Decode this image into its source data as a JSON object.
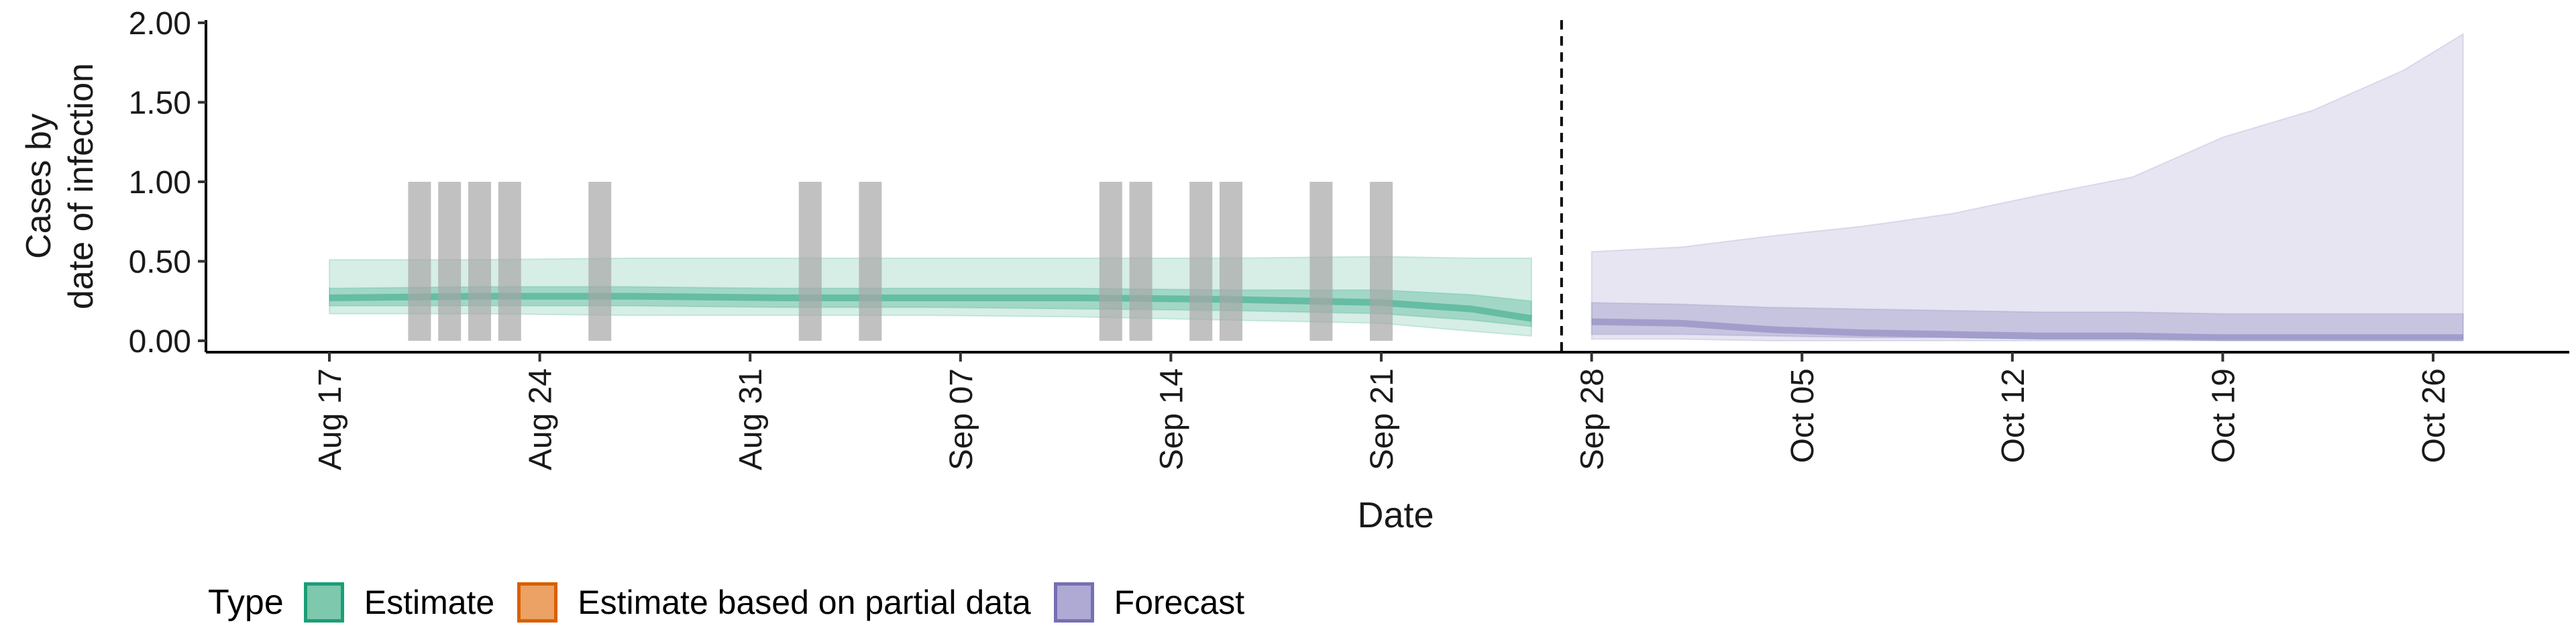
{
  "chart_data": {
    "type": "area",
    "ylabel_line1": "Cases by",
    "ylabel_line2": "date of infection",
    "xlabel": "Date",
    "ylim": [
      0,
      2
    ],
    "yticks": [
      {
        "value": 0,
        "label": "0.00"
      },
      {
        "value": 0.5,
        "label": "0.50"
      },
      {
        "value": 1.0,
        "label": "1.00"
      },
      {
        "value": 1.5,
        "label": "1.50"
      },
      {
        "value": 2.0,
        "label": "2.00"
      }
    ],
    "xrange": [
      "2021-08-17",
      "2021-10-26"
    ],
    "xticks": [
      {
        "date": "2021-08-17",
        "label": "Aug 17"
      },
      {
        "date": "2021-08-24",
        "label": "Aug 24"
      },
      {
        "date": "2021-08-31",
        "label": "Aug 31"
      },
      {
        "date": "2021-09-07",
        "label": "Sep 07"
      },
      {
        "date": "2021-09-14",
        "label": "Sep 14"
      },
      {
        "date": "2021-09-21",
        "label": "Sep 21"
      },
      {
        "date": "2021-09-28",
        "label": "Sep 28"
      },
      {
        "date": "2021-10-05",
        "label": "Oct 05"
      },
      {
        "date": "2021-10-12",
        "label": "Oct 12"
      },
      {
        "date": "2021-10-19",
        "label": "Oct 19"
      },
      {
        "date": "2021-10-26",
        "label": "Oct 26"
      }
    ],
    "forecast_cutoff": "2021-09-27",
    "observed_case_bars": [
      {
        "date": "2021-08-20",
        "value": 1
      },
      {
        "date": "2021-08-21",
        "value": 1
      },
      {
        "date": "2021-08-22",
        "value": 1
      },
      {
        "date": "2021-08-23",
        "value": 1
      },
      {
        "date": "2021-08-26",
        "value": 1
      },
      {
        "date": "2021-09-02",
        "value": 1
      },
      {
        "date": "2021-09-04",
        "value": 1
      },
      {
        "date": "2021-09-12",
        "value": 1
      },
      {
        "date": "2021-09-13",
        "value": 1
      },
      {
        "date": "2021-09-15",
        "value": 1
      },
      {
        "date": "2021-09-16",
        "value": 1
      },
      {
        "date": "2021-09-19",
        "value": 1
      },
      {
        "date": "2021-09-21",
        "value": 1
      }
    ],
    "series": [
      {
        "name": "Estimate",
        "color": "#1b9e77",
        "dates": [
          "2021-08-17",
          "2021-08-22",
          "2021-08-27",
          "2021-09-01",
          "2021-09-06",
          "2021-09-11",
          "2021-09-16",
          "2021-09-21",
          "2021-09-24",
          "2021-09-26"
        ],
        "lower90": [
          0.17,
          0.17,
          0.16,
          0.16,
          0.16,
          0.15,
          0.13,
          0.11,
          0.06,
          0.03
        ],
        "upper90": [
          0.51,
          0.51,
          0.52,
          0.52,
          0.52,
          0.52,
          0.52,
          0.53,
          0.52,
          0.52
        ],
        "lower50": [
          0.22,
          0.22,
          0.22,
          0.21,
          0.21,
          0.2,
          0.19,
          0.17,
          0.13,
          0.09
        ],
        "upper50": [
          0.33,
          0.34,
          0.34,
          0.33,
          0.33,
          0.33,
          0.32,
          0.32,
          0.29,
          0.25
        ],
        "median": [
          0.27,
          0.28,
          0.28,
          0.27,
          0.27,
          0.27,
          0.26,
          0.24,
          0.2,
          0.14
        ]
      },
      {
        "name": "Forecast",
        "color": "#7570b3",
        "dates": [
          "2021-09-28",
          "2021-10-01",
          "2021-10-04",
          "2021-10-07",
          "2021-10-10",
          "2021-10-13",
          "2021-10-16",
          "2021-10-19",
          "2021-10-22",
          "2021-10-25",
          "2021-10-27"
        ],
        "lower90": [
          0.01,
          0.01,
          0.0,
          0.0,
          0.0,
          0.0,
          0.0,
          0.0,
          0.0,
          0.0,
          0.0
        ],
        "upper90": [
          0.56,
          0.59,
          0.66,
          0.72,
          0.8,
          0.92,
          1.03,
          1.28,
          1.45,
          1.7,
          1.93
        ],
        "lower50": [
          0.04,
          0.04,
          0.03,
          0.02,
          0.02,
          0.01,
          0.01,
          0.01,
          0.01,
          0.01,
          0.01
        ],
        "upper50": [
          0.24,
          0.23,
          0.21,
          0.2,
          0.19,
          0.18,
          0.18,
          0.17,
          0.17,
          0.17,
          0.17
        ],
        "median": [
          0.12,
          0.11,
          0.07,
          0.05,
          0.04,
          0.03,
          0.03,
          0.02,
          0.02,
          0.02,
          0.02
        ]
      }
    ],
    "legend": {
      "title": "Type",
      "position": "bottom-left",
      "items": [
        {
          "label": "Estimate",
          "fill": "#7ec8ad",
          "stroke": "#1b9e77"
        },
        {
          "label": "Estimate based on partial data",
          "fill": "#eba264",
          "stroke": "#d95f02"
        },
        {
          "label": "Forecast",
          "fill": "#aeaad4",
          "stroke": "#7570b3"
        }
      ]
    },
    "grid": false
  }
}
